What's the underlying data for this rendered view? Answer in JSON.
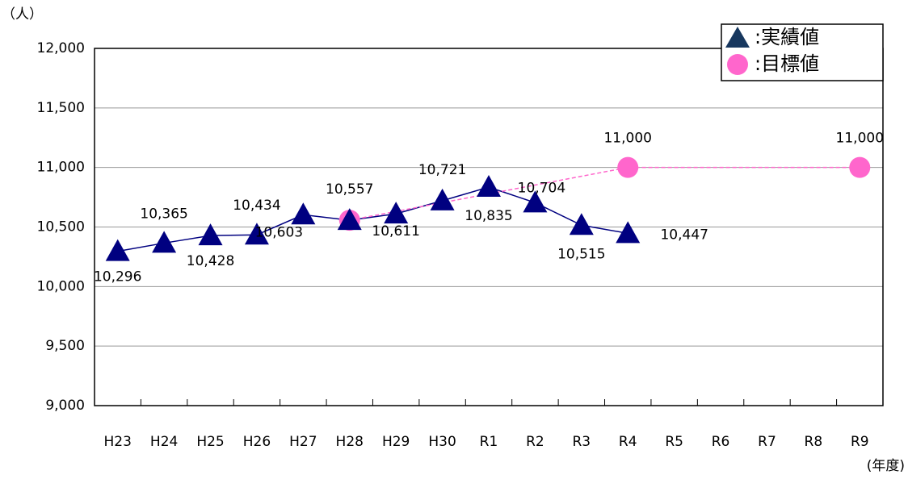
{
  "chart_data": {
    "type": "line",
    "y_label": "（人）",
    "x_label": "(年度)",
    "categories": [
      "H23",
      "H24",
      "H25",
      "H26",
      "H27",
      "H28",
      "H29",
      "H30",
      "R1",
      "R2",
      "R3",
      "R4",
      "R5",
      "R6",
      "R7",
      "R8",
      "R9"
    ],
    "series": [
      {
        "name": ":実績値",
        "color": "#000080",
        "marker": "triangle",
        "x": [
          "H23",
          "H24",
          "H25",
          "H26",
          "H27",
          "H28",
          "H29",
          "H30",
          "R1",
          "R2",
          "R3",
          "R4"
        ],
        "values": [
          10296,
          10365,
          10428,
          10434,
          10603,
          10557,
          10611,
          10721,
          10835,
          10704,
          10515,
          10447
        ],
        "value_labels": [
          "10,296",
          "10,365",
          "10,428",
          "10,434",
          "10,603",
          "10,557",
          "10,611",
          "10,721",
          "10,835",
          "10,704",
          "10,515",
          "10,447"
        ]
      },
      {
        "name": ":目標値",
        "color": "#ff66cc",
        "marker": "circle",
        "dashed": true,
        "x": [
          "H28",
          "R4",
          "R9"
        ],
        "values": [
          10557,
          11000,
          11000
        ],
        "value_labels": [
          null,
          "11,000",
          "11,000"
        ]
      }
    ],
    "ylim": [
      9000,
      12000
    ],
    "yticks": [
      {
        "value": 9000,
        "label": "9,000"
      },
      {
        "value": 9500,
        "label": "9,500"
      },
      {
        "value": 10000,
        "label": "10,000"
      },
      {
        "value": 10500,
        "label": "10,500"
      },
      {
        "value": 11000,
        "label": "11,000"
      },
      {
        "value": 11500,
        "label": "11,500"
      },
      {
        "value": 12000,
        "label": "12,000"
      }
    ],
    "grid": true,
    "legend": "top-right"
  }
}
